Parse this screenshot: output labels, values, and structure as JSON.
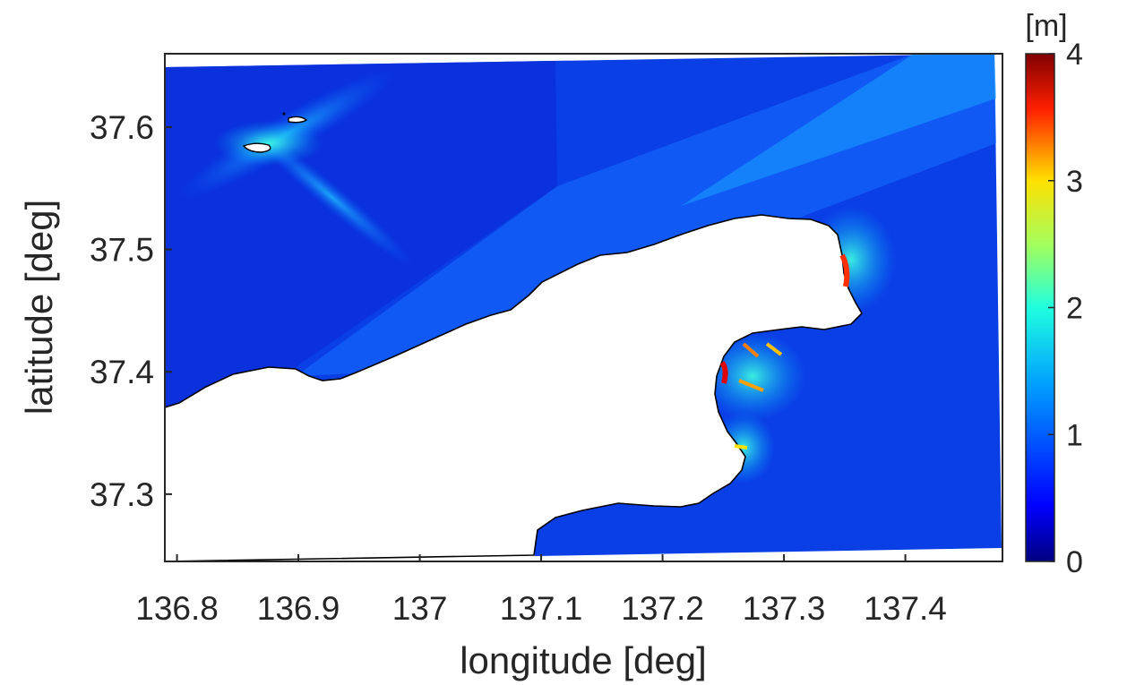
{
  "figure": {
    "xlabel": "longitude [deg]",
    "ylabel": "latitude [deg]",
    "x_ticks": [
      "136.8",
      "136.9",
      "137",
      "137.1",
      "137.2",
      "137.3",
      "137.4"
    ],
    "y_ticks": [
      "37.3",
      "37.4",
      "37.5",
      "37.6"
    ],
    "xlim": [
      136.79,
      137.48
    ],
    "ylim": [
      37.245,
      37.66
    ]
  },
  "colorbar": {
    "unit": "[m]",
    "ticks": [
      "0",
      "1",
      "2",
      "3",
      "4"
    ],
    "range": [
      0,
      4
    ],
    "colormap": "jet"
  },
  "colors": {
    "ocean": "#0a3fe6",
    "land": "#ffffff",
    "coastline": "#000000",
    "axis": "#262626"
  }
}
